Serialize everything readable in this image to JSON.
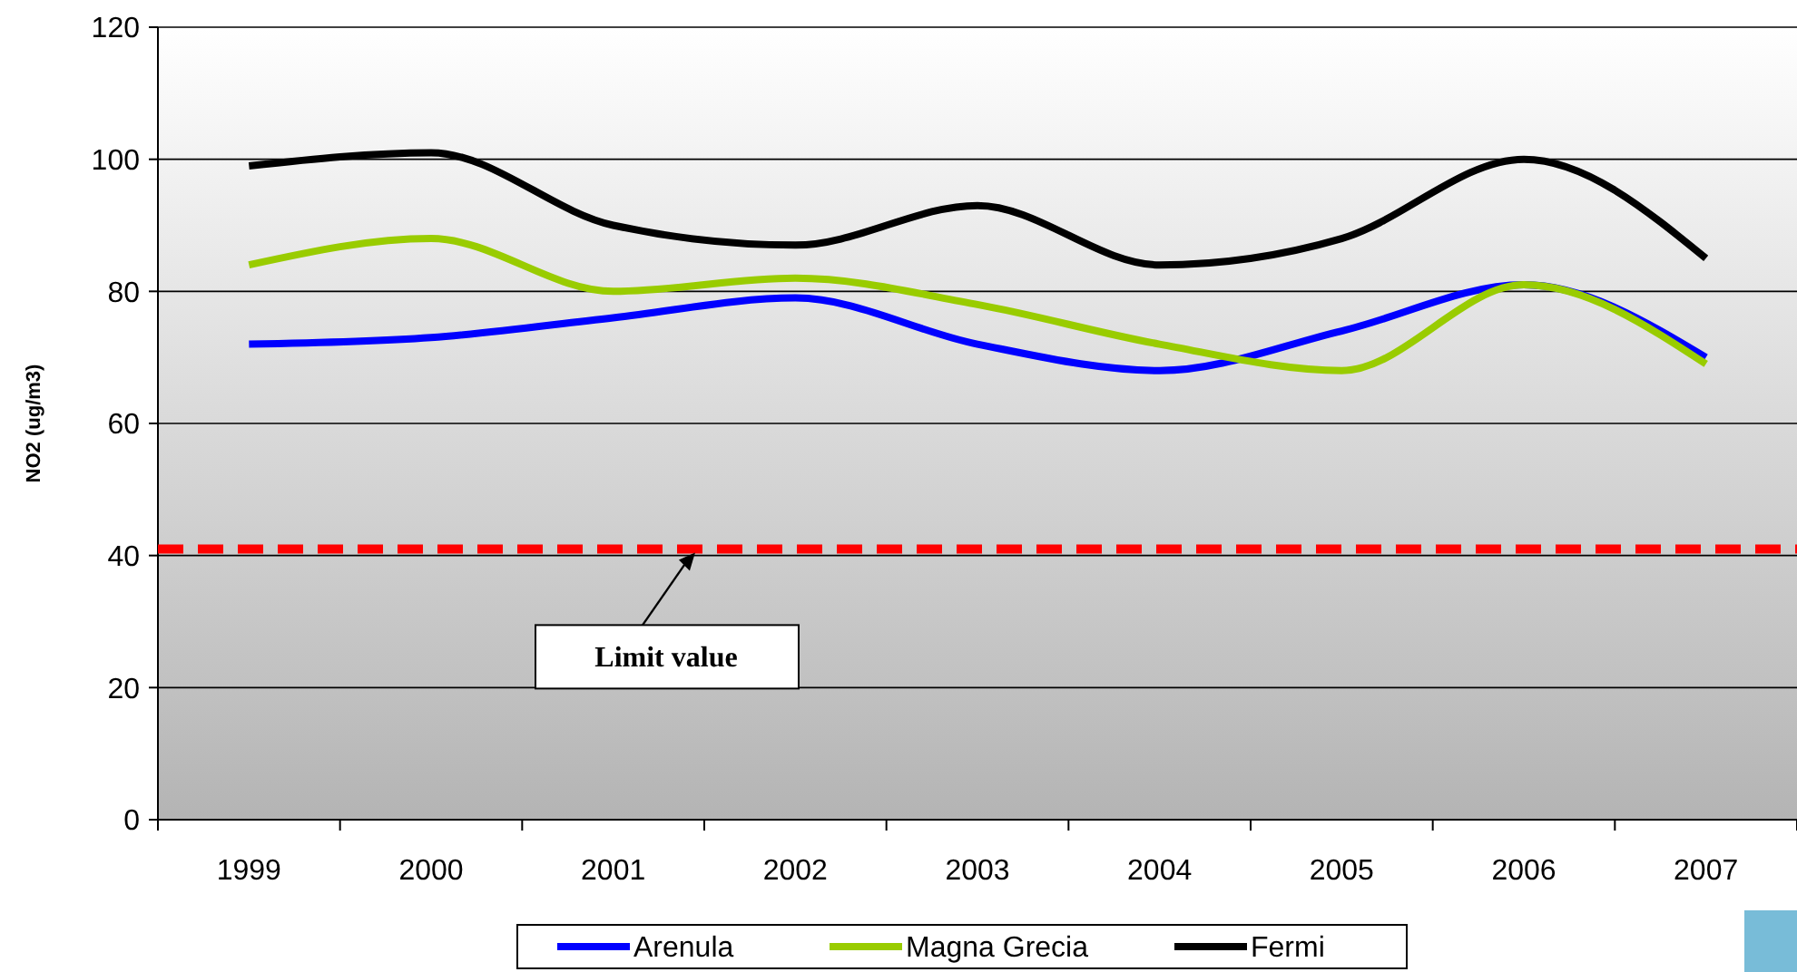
{
  "chart_data": {
    "type": "line",
    "ylabel": "NO2 (ug/m3)",
    "categories": [
      "1999",
      "2000",
      "2001",
      "2002",
      "2003",
      "2004",
      "2005",
      "2006",
      "2007"
    ],
    "series": [
      {
        "name": "Arenula",
        "color": "#0000ff",
        "values": [
          72,
          73,
          76,
          79,
          72,
          68,
          74,
          81,
          70
        ]
      },
      {
        "name": "Magna Grecia",
        "color": "#99cc00",
        "values": [
          84,
          88,
          80,
          82,
          78,
          72,
          68,
          81,
          69
        ]
      },
      {
        "name": "Fermi",
        "color": "#000000",
        "values": [
          99,
          101,
          90,
          87,
          93,
          84,
          88,
          100,
          85
        ]
      }
    ],
    "ylim": [
      0,
      120
    ],
    "yticks": [
      0,
      20,
      40,
      60,
      80,
      100,
      120
    ],
    "grid": "y",
    "legend": "bottom",
    "marker": "none",
    "line_style": "solid",
    "ref_lines": [
      {
        "axis": "y",
        "value": 41,
        "label": "Limit value",
        "color": "#ff0000",
        "line_style": "dashed"
      }
    ]
  }
}
